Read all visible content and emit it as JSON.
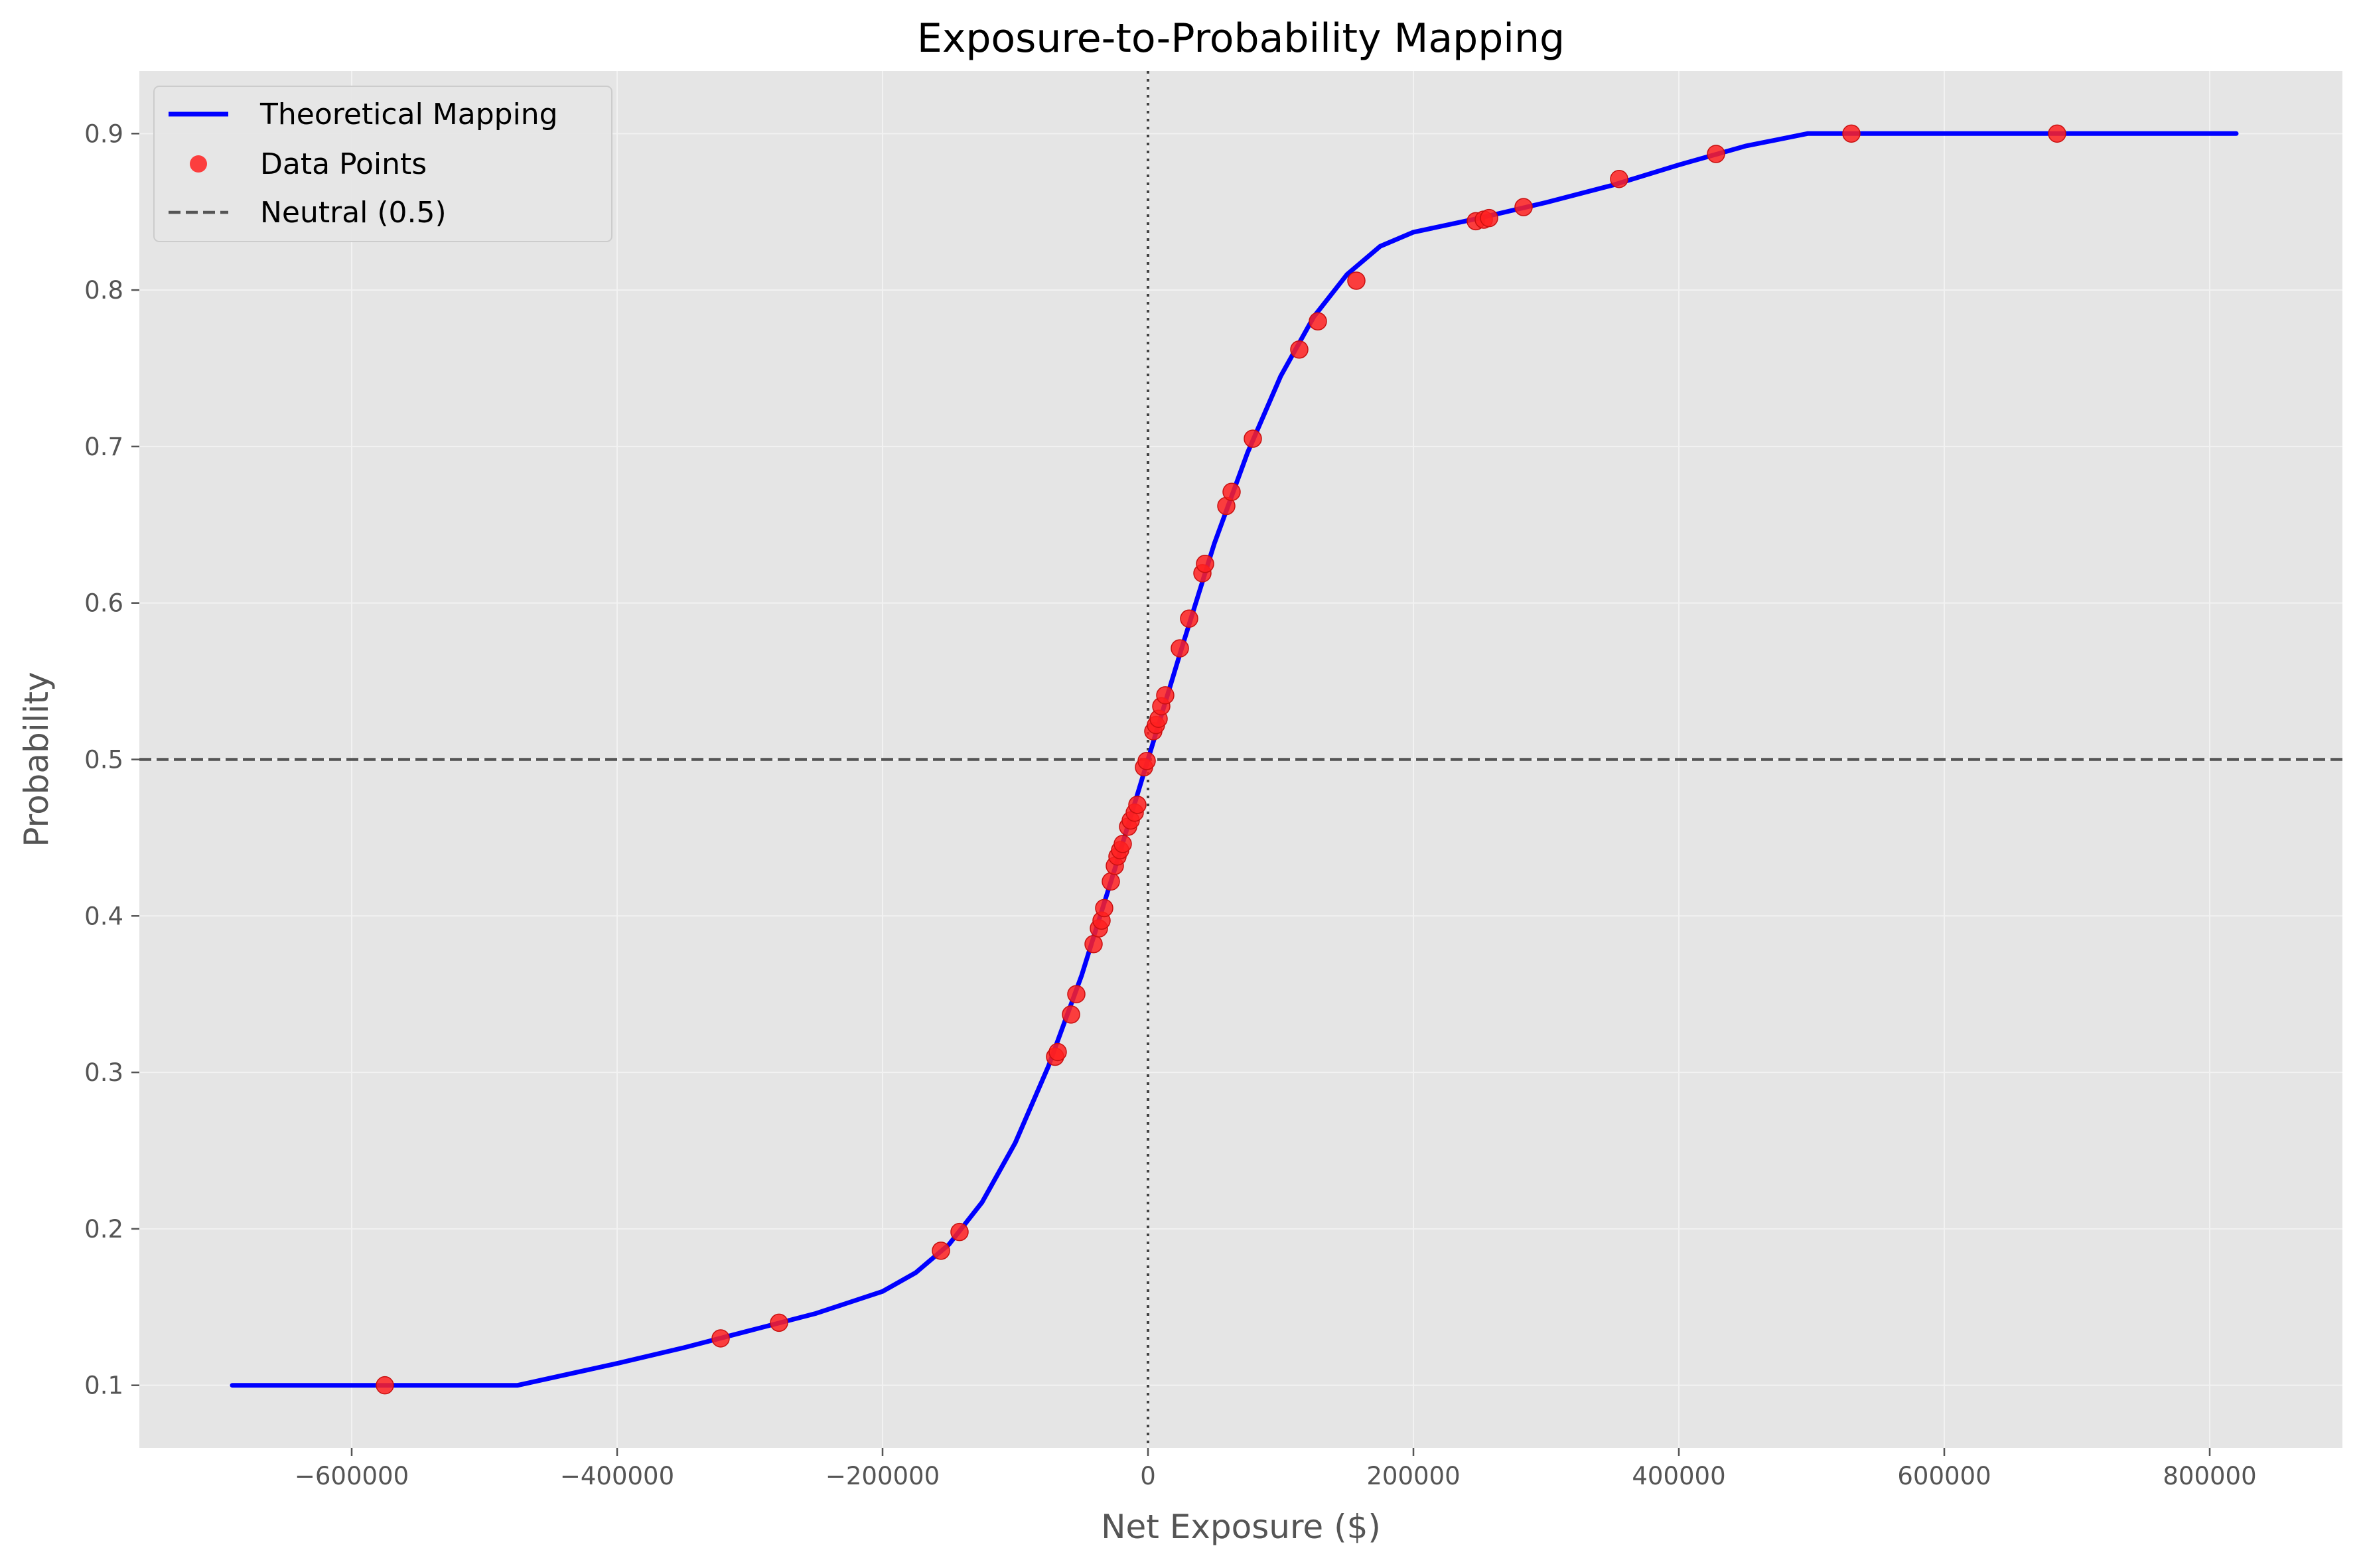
{
  "chart_data": {
    "type": "line",
    "title": "Exposure-to-Probability Mapping",
    "xlabel": "Net Exposure ($)",
    "ylabel": "Probability",
    "xlim": [
      -760000,
      900000
    ],
    "ylim": [
      0.06,
      0.94
    ],
    "xticks": [
      -600000,
      -400000,
      -200000,
      0,
      200000,
      400000,
      600000,
      800000
    ],
    "xtick_labels": [
      "−600000",
      "−400000",
      "−200000",
      "0",
      "200000",
      "400000",
      "600000",
      "800000"
    ],
    "yticks": [
      0.1,
      0.2,
      0.3,
      0.4,
      0.5,
      0.6,
      0.7,
      0.8,
      0.9
    ],
    "ytick_labels": [
      "0.1",
      "0.2",
      "0.3",
      "0.4",
      "0.5",
      "0.6",
      "0.7",
      "0.8",
      "0.9"
    ],
    "grid": true,
    "legend_position": "top-left",
    "background": "#e5e5e5",
    "series": [
      {
        "name": "Theoretical Mapping",
        "kind": "line",
        "color": "#0000ff",
        "x": [
          -690000,
          -475000,
          -400000,
          -350000,
          -300000,
          -250000,
          -200000,
          -175000,
          -150000,
          -125000,
          -100000,
          -75000,
          -50000,
          -25000,
          0,
          25000,
          50000,
          75000,
          100000,
          125000,
          150000,
          175000,
          200000,
          250000,
          300000,
          350000,
          400000,
          450000,
          497000,
          820000
        ],
        "y": [
          0.1,
          0.1,
          0.114,
          0.124,
          0.135,
          0.146,
          0.16,
          0.172,
          0.19,
          0.217,
          0.255,
          0.304,
          0.362,
          0.43,
          0.5,
          0.57,
          0.638,
          0.696,
          0.745,
          0.783,
          0.81,
          0.828,
          0.837,
          0.846,
          0.856,
          0.867,
          0.88,
          0.892,
          0.9,
          0.9
        ]
      },
      {
        "name": "Data Points",
        "kind": "scatter",
        "color": "#ff2020",
        "x": [
          -575000,
          -322000,
          -278000,
          -156000,
          -142000,
          -70000,
          -68000,
          -58000,
          -54000,
          -41000,
          -37000,
          -35000,
          -33000,
          -28000,
          -25000,
          -23000,
          -21000,
          -19000,
          -15000,
          -13000,
          -10000,
          -8000,
          -3000,
          -1000,
          4000,
          6000,
          8000,
          10000,
          13000,
          24000,
          31000,
          41000,
          43000,
          59000,
          63000,
          79000,
          114000,
          128000,
          157000,
          247000,
          253000,
          257000,
          283000,
          355000,
          428000,
          530000,
          685000
        ],
        "y": [
          0.1,
          0.13,
          0.14,
          0.186,
          0.198,
          0.31,
          0.313,
          0.337,
          0.35,
          0.382,
          0.392,
          0.397,
          0.405,
          0.422,
          0.432,
          0.438,
          0.442,
          0.446,
          0.457,
          0.461,
          0.466,
          0.471,
          0.495,
          0.499,
          0.518,
          0.522,
          0.526,
          0.534,
          0.541,
          0.571,
          0.59,
          0.619,
          0.625,
          0.662,
          0.671,
          0.705,
          0.762,
          0.78,
          0.806,
          0.844,
          0.845,
          0.846,
          0.853,
          0.871,
          0.887,
          0.9,
          0.9
        ]
      },
      {
        "name": "Neutral (0.5)",
        "kind": "hline",
        "color": "#555555",
        "y": 0.5
      }
    ],
    "vline": {
      "x": 0,
      "color": "#444444"
    }
  }
}
